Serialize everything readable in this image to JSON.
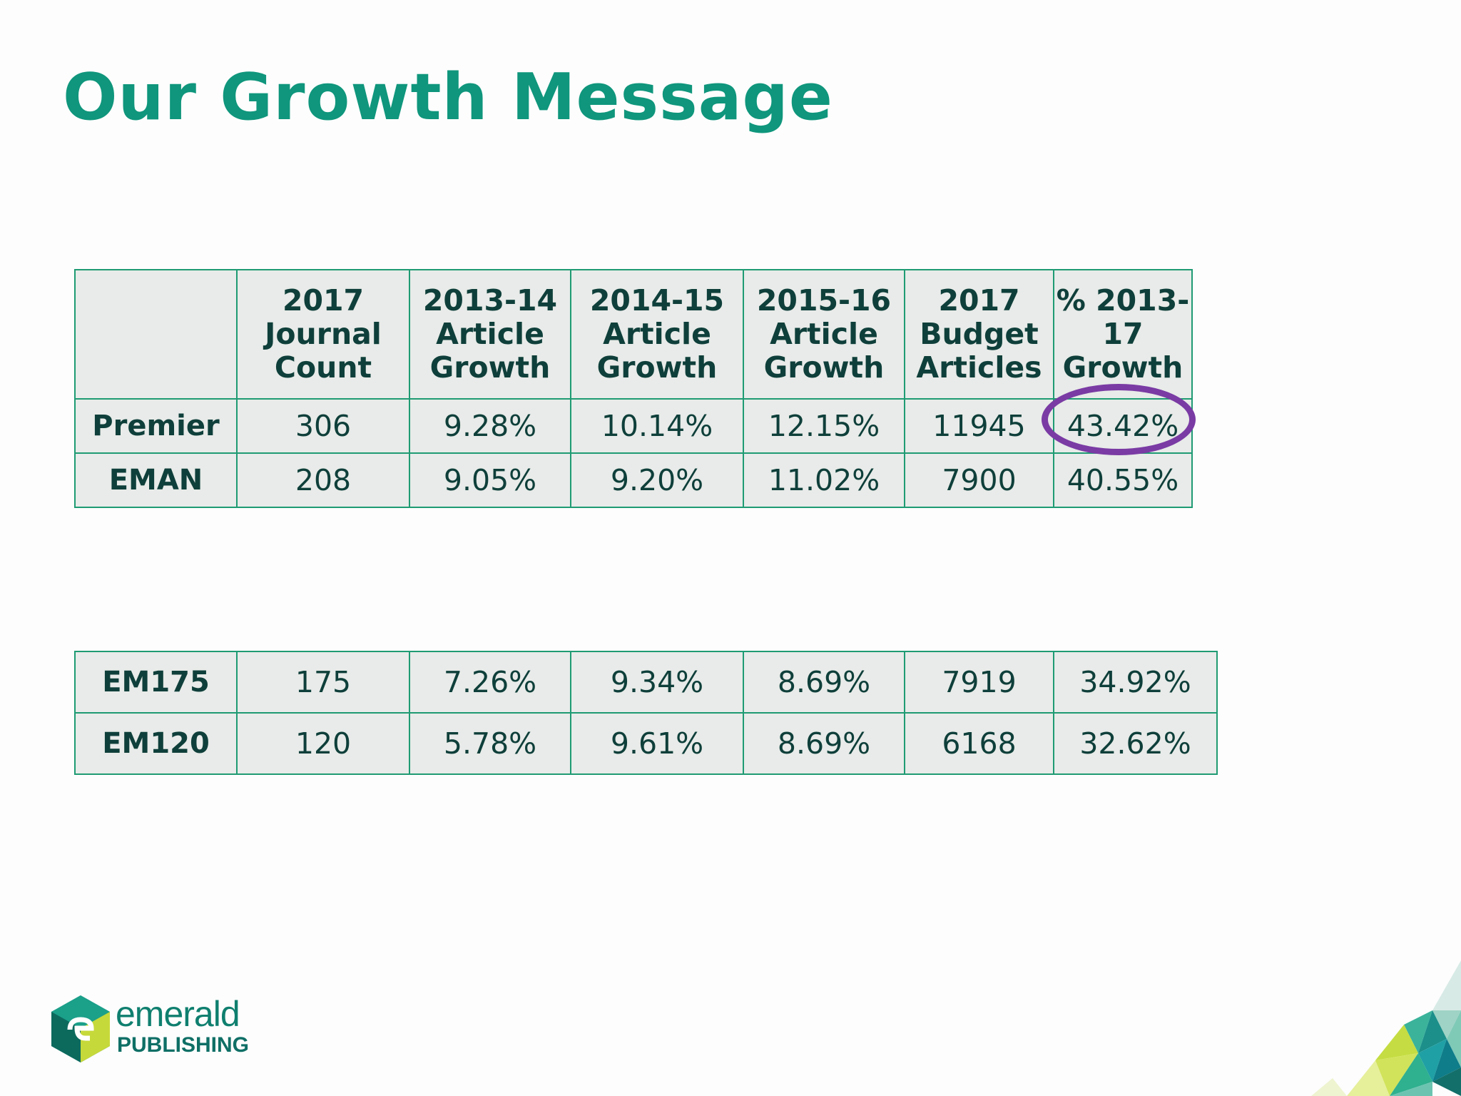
{
  "title": "Our Growth Message",
  "colors": {
    "accent": "#0f967c",
    "table_border": "#1f9b73",
    "highlight": "#7a3ba4"
  },
  "table_main": {
    "headers": [
      "",
      "2017 Journal Count",
      "2013-14 Article Growth",
      "2014-15 Article Growth",
      "2015-16 Article Growth",
      "2017 Budget Articles",
      "% 2013-17 Growth"
    ],
    "rows": [
      [
        "Premier",
        "306",
        "9.28%",
        "10.14%",
        "12.15%",
        "11945",
        "43.42%"
      ],
      [
        "EMAN",
        "208",
        "9.05%",
        "9.20%",
        "11.02%",
        "7900",
        "40.55%"
      ]
    ]
  },
  "table_second": {
    "rows": [
      [
        "EM175",
        "175",
        "7.26%",
        "9.34%",
        "8.69%",
        "7919",
        "34.92%"
      ],
      [
        "EM120",
        "120",
        "5.78%",
        "9.61%",
        "8.69%",
        "6168",
        "32.62%"
      ]
    ]
  },
  "logo": {
    "line1": "emerald",
    "line2": "PUBLISHING"
  }
}
